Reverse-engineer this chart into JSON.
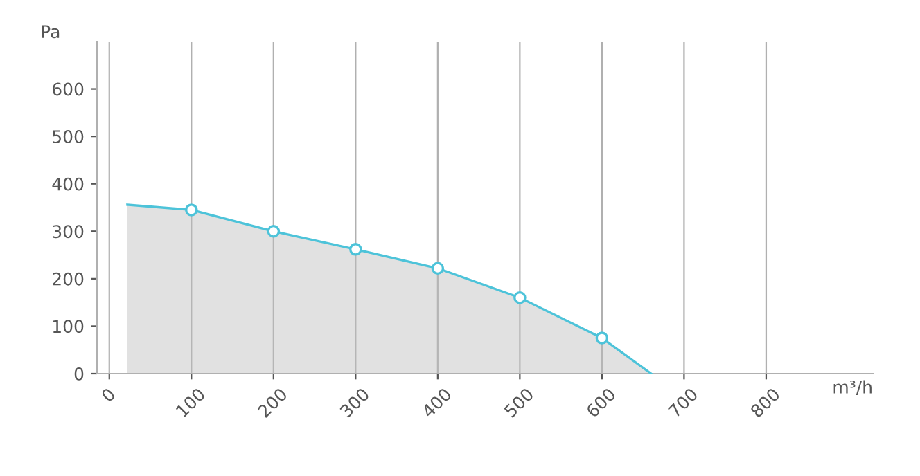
{
  "chart_data": {
    "type": "area",
    "xlabel": "m³/h",
    "ylabel": "Pa",
    "series": [
      {
        "color": "#4dc3d9",
        "x": [
          22,
          100,
          200,
          300,
          400,
          500,
          600,
          660
        ],
        "values": [
          356,
          345,
          300,
          262,
          222,
          160,
          75,
          0
        ],
        "marker": "none"
      },
      {
        "type": "scatter",
        "color": "#4dc3d9",
        "x": [
          100,
          200,
          300,
          400,
          500,
          600
        ],
        "values": [
          345,
          300,
          262,
          222,
          160,
          75
        ],
        "marker": "circle"
      }
    ],
    "xlim": [
      -15,
      930
    ],
    "ylim": [
      0,
      700
    ],
    "xticks": [
      0,
      100,
      200,
      300,
      400,
      500,
      600,
      700,
      800
    ],
    "yticks": [
      0,
      100,
      200,
      300,
      400,
      500,
      600
    ],
    "grid": "x",
    "legend": false
  }
}
